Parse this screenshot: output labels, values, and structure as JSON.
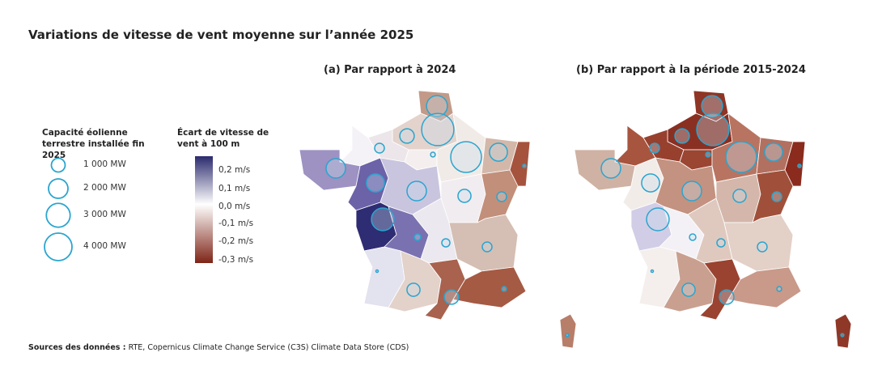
{
  "title": "Variations de vitesse de vent moyenne sur l’année 2025",
  "maps": [
    {
      "subtitle": "(a) Par rapport à 2024"
    },
    {
      "subtitle": "(b) Par rapport à la période 2015-2024"
    }
  ],
  "legend_capacity": {
    "title": "Capacité éolienne terrestre installée fin 2025",
    "items": [
      {
        "label": "1 000 MW",
        "mw": 1000
      },
      {
        "label": "2 000 MW",
        "mw": 2000
      },
      {
        "label": "3 000 MW",
        "mw": 3000
      },
      {
        "label": "4 000 MW",
        "mw": 4000
      }
    ],
    "circle_color": "#2aa5cf"
  },
  "legend_wind": {
    "title": "Écart de vitesse de vent à 100 m",
    "ticks": [
      "0,2 m/s",
      "0,1 m/s",
      "0,0 m/s",
      "-0,1 m/s",
      "-0,2 m/s",
      "-0,3 m/s"
    ],
    "colors": {
      "max": "#2b2a6e",
      "mid": "#ffffff",
      "min": "#7e2416"
    }
  },
  "regions": [
    {
      "id": "nord-pas-de-calais",
      "mw": 2300,
      "fill_a": "#c39a88",
      "fill_b": "#8e3526"
    },
    {
      "id": "picardie",
      "mw": 5500,
      "fill_a": "#e3d3cc",
      "fill_b": "#8a3022"
    },
    {
      "id": "haute-normandie",
      "mw": 1100,
      "fill_a": "#ece6ea",
      "fill_b": "#98402e"
    },
    {
      "id": "basse-normandie",
      "mw": 500,
      "fill_a": "#f4f2f6",
      "fill_b": "#a8553f"
    },
    {
      "id": "bretagne",
      "mw": 2000,
      "fill_a": "#9d92c2",
      "fill_b": "#cfb2a4"
    },
    {
      "id": "pays-de-la-loire",
      "mw": 1700,
      "fill_a": "#6b62a8",
      "fill_b": "#f2ece9"
    },
    {
      "id": "ile-de-france",
      "mw": 120,
      "fill_a": "#f4efee",
      "fill_b": "#9a4633"
    },
    {
      "id": "centre",
      "mw": 2000,
      "fill_a": "#c9c5df",
      "fill_b": "#c49280"
    },
    {
      "id": "champagne-ardenne",
      "mw": 5000,
      "fill_a": "#f1ebe8",
      "fill_b": "#b87461"
    },
    {
      "id": "lorraine",
      "mw": 1700,
      "fill_a": "#d3b8aa",
      "fill_b": "#b27060"
    },
    {
      "id": "alsace",
      "mw": 60,
      "fill_a": "#a6533d",
      "fill_b": "#8a2b1e"
    },
    {
      "id": "bourgogne",
      "mw": 900,
      "fill_a": "#f1ecef",
      "fill_b": "#d4b7aa"
    },
    {
      "id": "franche-comte",
      "mw": 500,
      "fill_a": "#c28f7a",
      "fill_b": "#a0503a"
    },
    {
      "id": "poitou-charentes",
      "mw": 2700,
      "fill_a": "#2e2c72",
      "fill_b": "#d2cde6"
    },
    {
      "id": "limousin",
      "mw": 220,
      "fill_a": "#7a72b0",
      "fill_b": "#f4f1f6"
    },
    {
      "id": "auvergne",
      "mw": 350,
      "fill_a": "#ece8ef",
      "fill_b": "#dfc9bf"
    },
    {
      "id": "rhone-alpes",
      "mw": 500,
      "fill_a": "#d5beb3",
      "fill_b": "#e3d0c7"
    },
    {
      "id": "aquitaine",
      "mw": 15,
      "fill_a": "#e3e2ef",
      "fill_b": "#f4efed"
    },
    {
      "id": "midi-pyrenees",
      "mw": 900,
      "fill_a": "#e3d2ca",
      "fill_b": "#c9a090"
    },
    {
      "id": "languedoc-roussillon",
      "mw": 1100,
      "fill_a": "#a8624d",
      "fill_b": "#9a4330"
    },
    {
      "id": "provence-alpes-cote-d-azur",
      "mw": 120,
      "fill_a": "#a55a43",
      "fill_b": "#c9998a"
    },
    {
      "id": "corse",
      "mw": 50,
      "fill_a": "#b77e6a",
      "fill_b": "#8f3828"
    }
  ],
  "source": {
    "label": "Sources des données :",
    "text": " RTE, Copernicus Climate Change Service (C3S) Climate Data Store (CDS)"
  }
}
